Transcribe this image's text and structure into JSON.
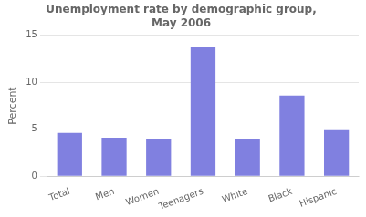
{
  "chart_data": {
    "type": "bar",
    "title": "Unemployment rate by demographic group,\nMay 2006",
    "ylabel": "Percent",
    "categories": [
      "Total",
      "Men",
      "Women",
      "Teenagers",
      "White",
      "Black",
      "Hispanic"
    ],
    "values": [
      4.6,
      4.1,
      4.0,
      13.8,
      4.0,
      8.6,
      4.9
    ],
    "color": "#8080e0",
    "ylim": [
      0,
      15
    ],
    "yticks": [
      0,
      5,
      10,
      15
    ],
    "grid": true
  }
}
